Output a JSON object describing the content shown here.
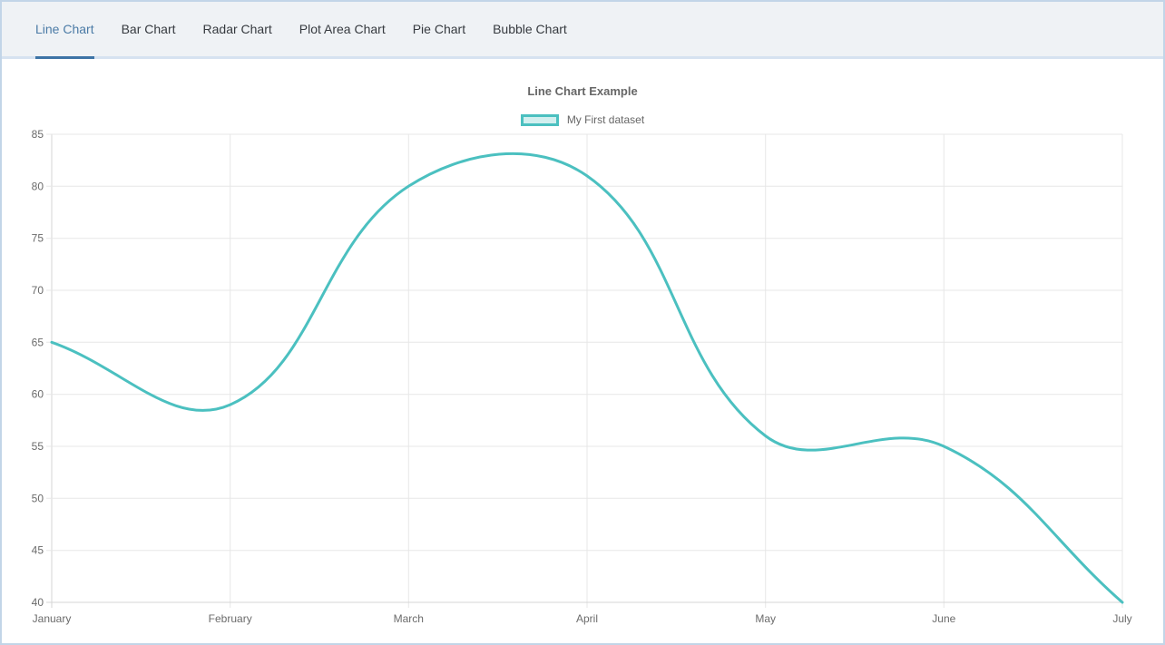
{
  "tabs": {
    "items": [
      {
        "label": "Line Chart",
        "active": true
      },
      {
        "label": "Bar Chart",
        "active": false
      },
      {
        "label": "Radar Chart",
        "active": false
      },
      {
        "label": "Plot Area Chart",
        "active": false
      },
      {
        "label": "Pie Chart",
        "active": false
      },
      {
        "label": "Bubble Chart",
        "active": false
      }
    ]
  },
  "chart_data": {
    "type": "line",
    "title": "Line Chart Example",
    "categories": [
      "January",
      "February",
      "March",
      "April",
      "May",
      "June",
      "July"
    ],
    "series": [
      {
        "name": "My First dataset",
        "values": [
          65,
          59,
          80,
          81,
          56,
          55,
          40
        ]
      }
    ],
    "xlabel": "",
    "ylabel": "",
    "ylim": [
      40,
      85
    ],
    "ytick_step": 5,
    "grid": true,
    "legend_position": "top",
    "line_color": "#4bc0c0",
    "legend_fill": "rgba(75,192,192,0.25)",
    "curve_tension": 0.4
  },
  "theme": {
    "accent_blue": "#3d74a6",
    "active_tab_text": "#4b7ba6",
    "tab_text": "#363a3f",
    "tabbar_bg": "#eff2f5",
    "tabbar_border": "#d6e2f0",
    "page_border": "#c2d5e8",
    "grid_color": "#e7e7e7",
    "axis_color": "#d5d5d5",
    "axis_text": "#6b6b6b",
    "title_text": "#666666"
  }
}
